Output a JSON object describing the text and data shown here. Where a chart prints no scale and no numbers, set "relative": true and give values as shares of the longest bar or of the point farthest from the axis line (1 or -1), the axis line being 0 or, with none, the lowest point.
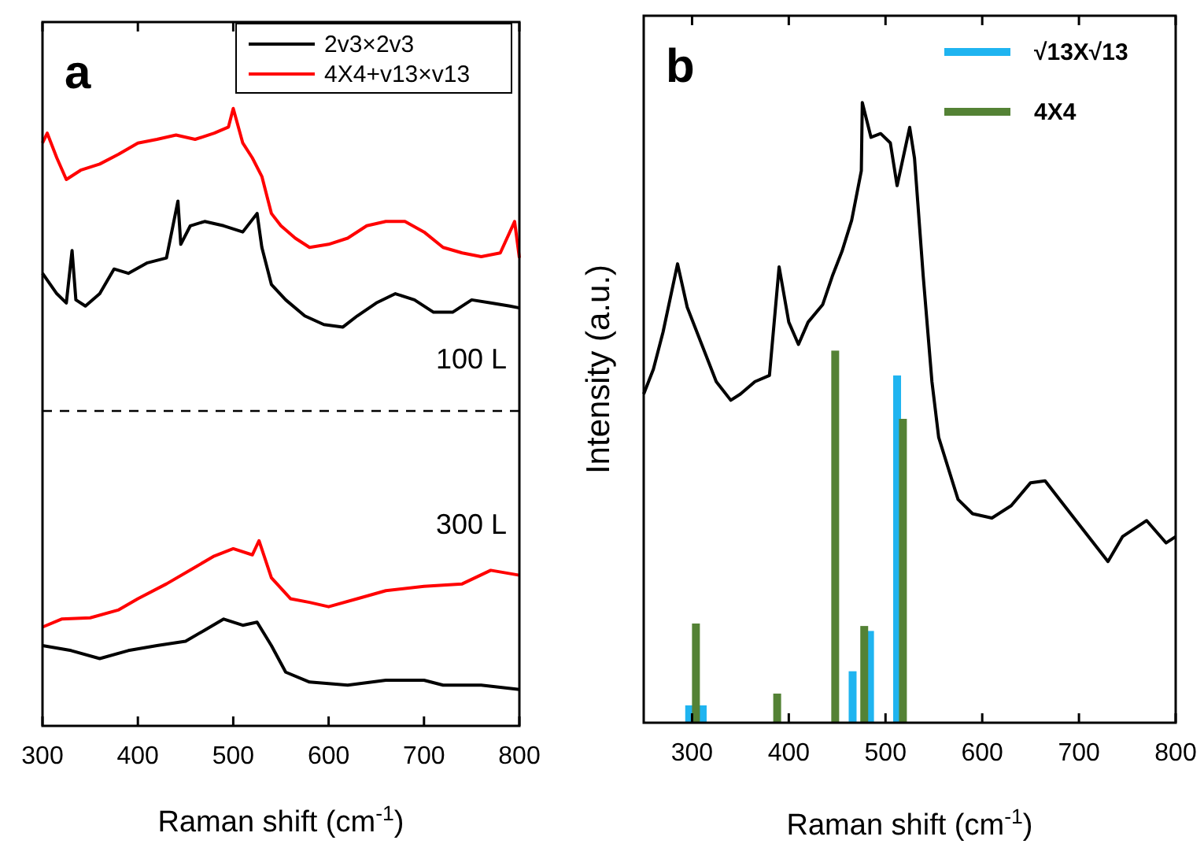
{
  "chart_data": [
    {
      "type": "line",
      "title": "a",
      "xlabel": "Raman shift (cm$^{-1}$)",
      "relative": true,
      "xlim": [
        300,
        800
      ],
      "xticks": [
        300,
        400,
        500,
        600,
        700,
        800
      ],
      "legend": "top right",
      "ref_lines": [
        {
          "axis": "y",
          "value": 0.51,
          "line_style": "dashed",
          "color": "#000000"
        }
      ],
      "annotations": [
        "100 L",
        "300 L"
      ],
      "series": [
        {
          "name": "2v3×2v3",
          "color": "#000000",
          "x": [
            300,
            315,
            325,
            331,
            335,
            345,
            360,
            375,
            390,
            410,
            430,
            442,
            445,
            455,
            470,
            490,
            510,
            525,
            530,
            540,
            555,
            575,
            595,
            615,
            630,
            650,
            670,
            690,
            710,
            730,
            750,
            770,
            790,
            800
          ],
          "values": [
            0.733,
            0.7,
            0.685,
            0.77,
            0.69,
            0.68,
            0.7,
            0.74,
            0.733,
            0.75,
            0.758,
            0.85,
            0.78,
            0.81,
            0.817,
            0.81,
            0.8,
            0.83,
            0.775,
            0.715,
            0.69,
            0.664,
            0.65,
            0.646,
            0.664,
            0.685,
            0.7,
            0.69,
            0.67,
            0.67,
            0.69,
            0.685,
            0.68,
            0.677
          ]
        },
        {
          "name": "4X4+v13×v13",
          "color": "#ff0000",
          "x": [
            300,
            305,
            315,
            325,
            340,
            360,
            380,
            400,
            420,
            440,
            460,
            480,
            495,
            500,
            510,
            520,
            530,
            540,
            550,
            565,
            580,
            600,
            620,
            640,
            660,
            680,
            700,
            720,
            740,
            760,
            780,
            795,
            800
          ],
          "values": [
            0.944,
            0.96,
            0.92,
            0.885,
            0.9,
            0.91,
            0.926,
            0.944,
            0.95,
            0.957,
            0.95,
            0.96,
            0.97,
            1.0,
            0.944,
            0.92,
            0.89,
            0.83,
            0.81,
            0.79,
            0.775,
            0.78,
            0.79,
            0.81,
            0.817,
            0.817,
            0.8,
            0.775,
            0.766,
            0.76,
            0.766,
            0.817,
            0.758
          ]
        },
        {
          "color": "#000000",
          "x": [
            300,
            330,
            360,
            390,
            420,
            450,
            470,
            490,
            510,
            525,
            540,
            555,
            580,
            620,
            660,
            700,
            720,
            760,
            800
          ],
          "values": [
            0.13,
            0.122,
            0.109,
            0.122,
            0.13,
            0.137,
            0.155,
            0.173,
            0.163,
            0.168,
            0.13,
            0.087,
            0.071,
            0.066,
            0.074,
            0.074,
            0.066,
            0.066,
            0.059
          ]
        },
        {
          "color": "#ff0000",
          "x": [
            300,
            320,
            350,
            380,
            400,
            430,
            460,
            480,
            500,
            520,
            527,
            540,
            560,
            580,
            600,
            630,
            660,
            700,
            740,
            770,
            800
          ],
          "values": [
            0.16,
            0.173,
            0.175,
            0.188,
            0.206,
            0.23,
            0.257,
            0.275,
            0.287,
            0.277,
            0.3,
            0.24,
            0.206,
            0.2,
            0.193,
            0.206,
            0.219,
            0.226,
            0.23,
            0.252,
            0.244
          ]
        }
      ]
    },
    {
      "type": "line",
      "title": "b",
      "xlabel": "Raman shift (cm$^{-1}$)",
      "ylabel": "Intensity (a.u.)",
      "relative": true,
      "xlim": [
        250,
        800
      ],
      "xticks": [
        300,
        400,
        500,
        600,
        700,
        800
      ],
      "legend": "top right",
      "series": [
        {
          "color": "#000000",
          "x": [
            250,
            260,
            270,
            285,
            295,
            310,
            325,
            340,
            350,
            365,
            380,
            390,
            400,
            410,
            420,
            435,
            445,
            455,
            465,
            475,
            476,
            485,
            495,
            505,
            512,
            525,
            530,
            539,
            548,
            555,
            565,
            575,
            590,
            610,
            630,
            650,
            665,
            680,
            700,
            720,
            730,
            745,
            770,
            790,
            800
          ],
          "values": [
            0.53,
            0.57,
            0.63,
            0.74,
            0.67,
            0.61,
            0.55,
            0.52,
            0.53,
            0.55,
            0.56,
            0.735,
            0.646,
            0.61,
            0.646,
            0.674,
            0.72,
            0.76,
            0.81,
            0.89,
            1.0,
            0.944,
            0.95,
            0.935,
            0.866,
            0.96,
            0.91,
            0.72,
            0.55,
            0.46,
            0.41,
            0.36,
            0.337,
            0.33,
            0.35,
            0.387,
            0.39,
            0.36,
            0.32,
            0.28,
            0.26,
            0.3,
            0.326,
            0.29,
            0.3
          ]
        },
        {
          "type": "bar",
          "name": "√13X√13",
          "color": "#1fb4f0",
          "x": [
            297,
            311,
            466,
            484,
            512
          ],
          "values": [
            0.028,
            0.028,
            0.083,
            0.148,
            0.56
          ]
        },
        {
          "type": "bar",
          "name": "4X4",
          "color": "#548235",
          "x": [
            304,
            388,
            448,
            478,
            518
          ],
          "values": [
            0.16,
            0.047,
            0.6,
            0.156,
            0.49
          ]
        }
      ]
    }
  ]
}
